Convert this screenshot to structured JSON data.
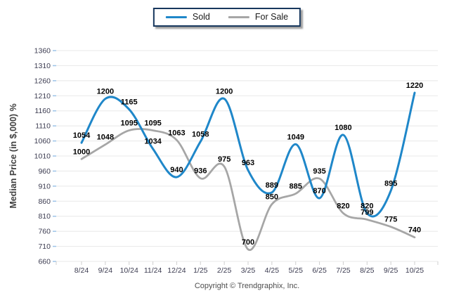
{
  "legend": {
    "items": [
      {
        "label": "Sold",
        "color": "#1f87c9"
      },
      {
        "label": "For Sale",
        "color": "#a6a6a6"
      }
    ]
  },
  "chart_data": {
    "type": "line",
    "title": "",
    "xlabel": "",
    "ylabel": "Median Price (in $,000) %",
    "ylim": [
      660,
      1360
    ],
    "ytick_step": 50,
    "grid": "horizontal",
    "legend_position": "top-center",
    "smoothing": "spline",
    "point_labels": "all",
    "categories": [
      "8/24",
      "9/24",
      "10/24",
      "11/24",
      "12/24",
      "1/25",
      "2/25",
      "3/25",
      "4/25",
      "5/25",
      "6/25",
      "7/25",
      "8/25",
      "9/25",
      "10/25"
    ],
    "series": [
      {
        "name": "Sold",
        "color": "#1f87c9",
        "values": [
          1054,
          1200,
          1165,
          1034,
          940,
          1058,
          1200,
          963,
          889,
          1049,
          870,
          1080,
          820,
          895,
          1220
        ]
      },
      {
        "name": "For Sale",
        "color": "#a6a6a6",
        "values": [
          1000,
          1048,
          1095,
          1095,
          1063,
          936,
          975,
          700,
          850,
          885,
          935,
          820,
          799,
          775,
          740
        ]
      }
    ]
  },
  "footer": {
    "copyright": "Copyright © Trendgraphix, Inc."
  },
  "colors": {
    "grid": "#e8e8e8",
    "tick_label": "#3b3b50",
    "axis_title": "#404040",
    "y_tick_mark": "#9cc3e8",
    "x_tick_mark": "#cfcfcf",
    "point_label": "#000000",
    "legend_border": "#17375d",
    "background": "#ffffff"
  }
}
